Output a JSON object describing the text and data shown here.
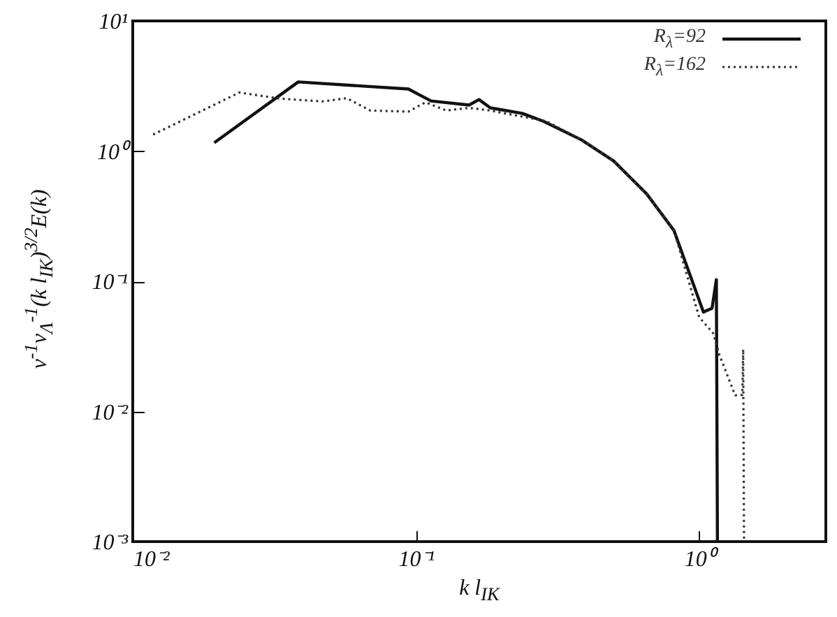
{
  "chart_data": {
    "type": "line",
    "xlabel": "k l$_{IK}$",
    "ylabel": "ν$^{-1}$ν$_{Λ}$$^{-1}$(k l$_{IK}$)$^{3/2}$E(k)",
    "log": "xy",
    "grid": false,
    "legend": "top right",
    "marker": "none",
    "xlim": [
      0.01,
      2.8
    ],
    "ylim": [
      0.001,
      10
    ],
    "xticks": [
      {
        "value": 0.01,
        "label": "10⁻²"
      },
      {
        "value": 0.1,
        "label": "10⁻¹"
      },
      {
        "value": 1,
        "label": "10⁰"
      }
    ],
    "yticks": [
      {
        "value": 0.001,
        "label": "10⁻³"
      },
      {
        "value": 0.01,
        "label": "10⁻²"
      },
      {
        "value": 0.1,
        "label": "10⁻¹"
      },
      {
        "value": 1,
        "label": "10⁰"
      },
      {
        "value": 10,
        "label": "10¹"
      }
    ],
    "series": [
      {
        "name": "R$_{λ}$=92",
        "color": "#111111",
        "line_style": "solid",
        "x": [
          0.0194,
          0.0384,
          0.094,
          0.113,
          0.154,
          0.167,
          0.183,
          0.237,
          0.281,
          0.384,
          0.499,
          0.652,
          0.815,
          1.035,
          1.11,
          1.15,
          1.16
        ],
        "values": [
          1.16,
          3.4,
          3.0,
          2.43,
          2.26,
          2.49,
          2.15,
          1.95,
          1.7,
          1.22,
          0.84,
          0.47,
          0.245,
          0.058,
          0.062,
          0.103,
          0.001
        ]
      },
      {
        "name": "R$_{λ}$=162",
        "color": "#333333",
        "line_style": "dotted",
        "x": [
          0.0118,
          0.0238,
          0.0331,
          0.047,
          0.057,
          0.069,
          0.094,
          0.108,
          0.128,
          0.154,
          0.183,
          0.288,
          0.384,
          0.499,
          0.652,
          0.815,
          1.0,
          1.12,
          1.18,
          1.34,
          1.42,
          1.43,
          1.44
        ],
        "values": [
          1.34,
          2.82,
          2.53,
          2.41,
          2.55,
          2.05,
          2.01,
          2.37,
          2.05,
          2.15,
          2.05,
          1.7,
          1.22,
          0.84,
          0.47,
          0.245,
          0.053,
          0.04,
          0.027,
          0.0133,
          0.0134,
          0.03,
          0.001
        ]
      }
    ]
  }
}
